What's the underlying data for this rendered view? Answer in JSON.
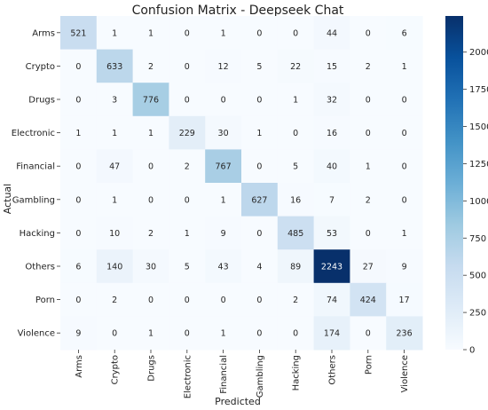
{
  "chart_data": {
    "type": "heatmap",
    "title": "Confusion Matrix - Deepseek Chat",
    "xlabel": "Predicted",
    "ylabel": "Actual",
    "row_labels": [
      "Arms",
      "Crypto",
      "Drugs",
      "Electronic",
      "Financial",
      "Gambling",
      "Hacking",
      "Others",
      "Porn",
      "Violence"
    ],
    "col_labels": [
      "Arms",
      "Crypto",
      "Drugs",
      "Electronic",
      "Financial",
      "Gambling",
      "Hacking",
      "Others",
      "Porn",
      "Violence"
    ],
    "values": [
      [
        521,
        1,
        1,
        0,
        1,
        0,
        0,
        44,
        0,
        6
      ],
      [
        0,
        633,
        2,
        0,
        12,
        5,
        22,
        15,
        2,
        1
      ],
      [
        0,
        3,
        776,
        0,
        0,
        0,
        1,
        32,
        0,
        0
      ],
      [
        1,
        1,
        1,
        229,
        30,
        1,
        0,
        16,
        0,
        0
      ],
      [
        0,
        47,
        0,
        2,
        767,
        0,
        5,
        40,
        1,
        0
      ],
      [
        0,
        1,
        0,
        0,
        1,
        627,
        16,
        7,
        2,
        0
      ],
      [
        0,
        10,
        2,
        1,
        9,
        0,
        485,
        53,
        0,
        1
      ],
      [
        6,
        140,
        30,
        5,
        43,
        4,
        89,
        2243,
        27,
        9
      ],
      [
        0,
        2,
        0,
        0,
        0,
        0,
        2,
        74,
        424,
        17
      ],
      [
        9,
        0,
        1,
        0,
        1,
        0,
        0,
        174,
        0,
        236
      ]
    ],
    "colormap": "Blues",
    "colorbar": {
      "min": 0,
      "max": 2243,
      "ticks": [
        0,
        250,
        500,
        750,
        1000,
        1250,
        1500,
        1750,
        2000
      ]
    }
  }
}
